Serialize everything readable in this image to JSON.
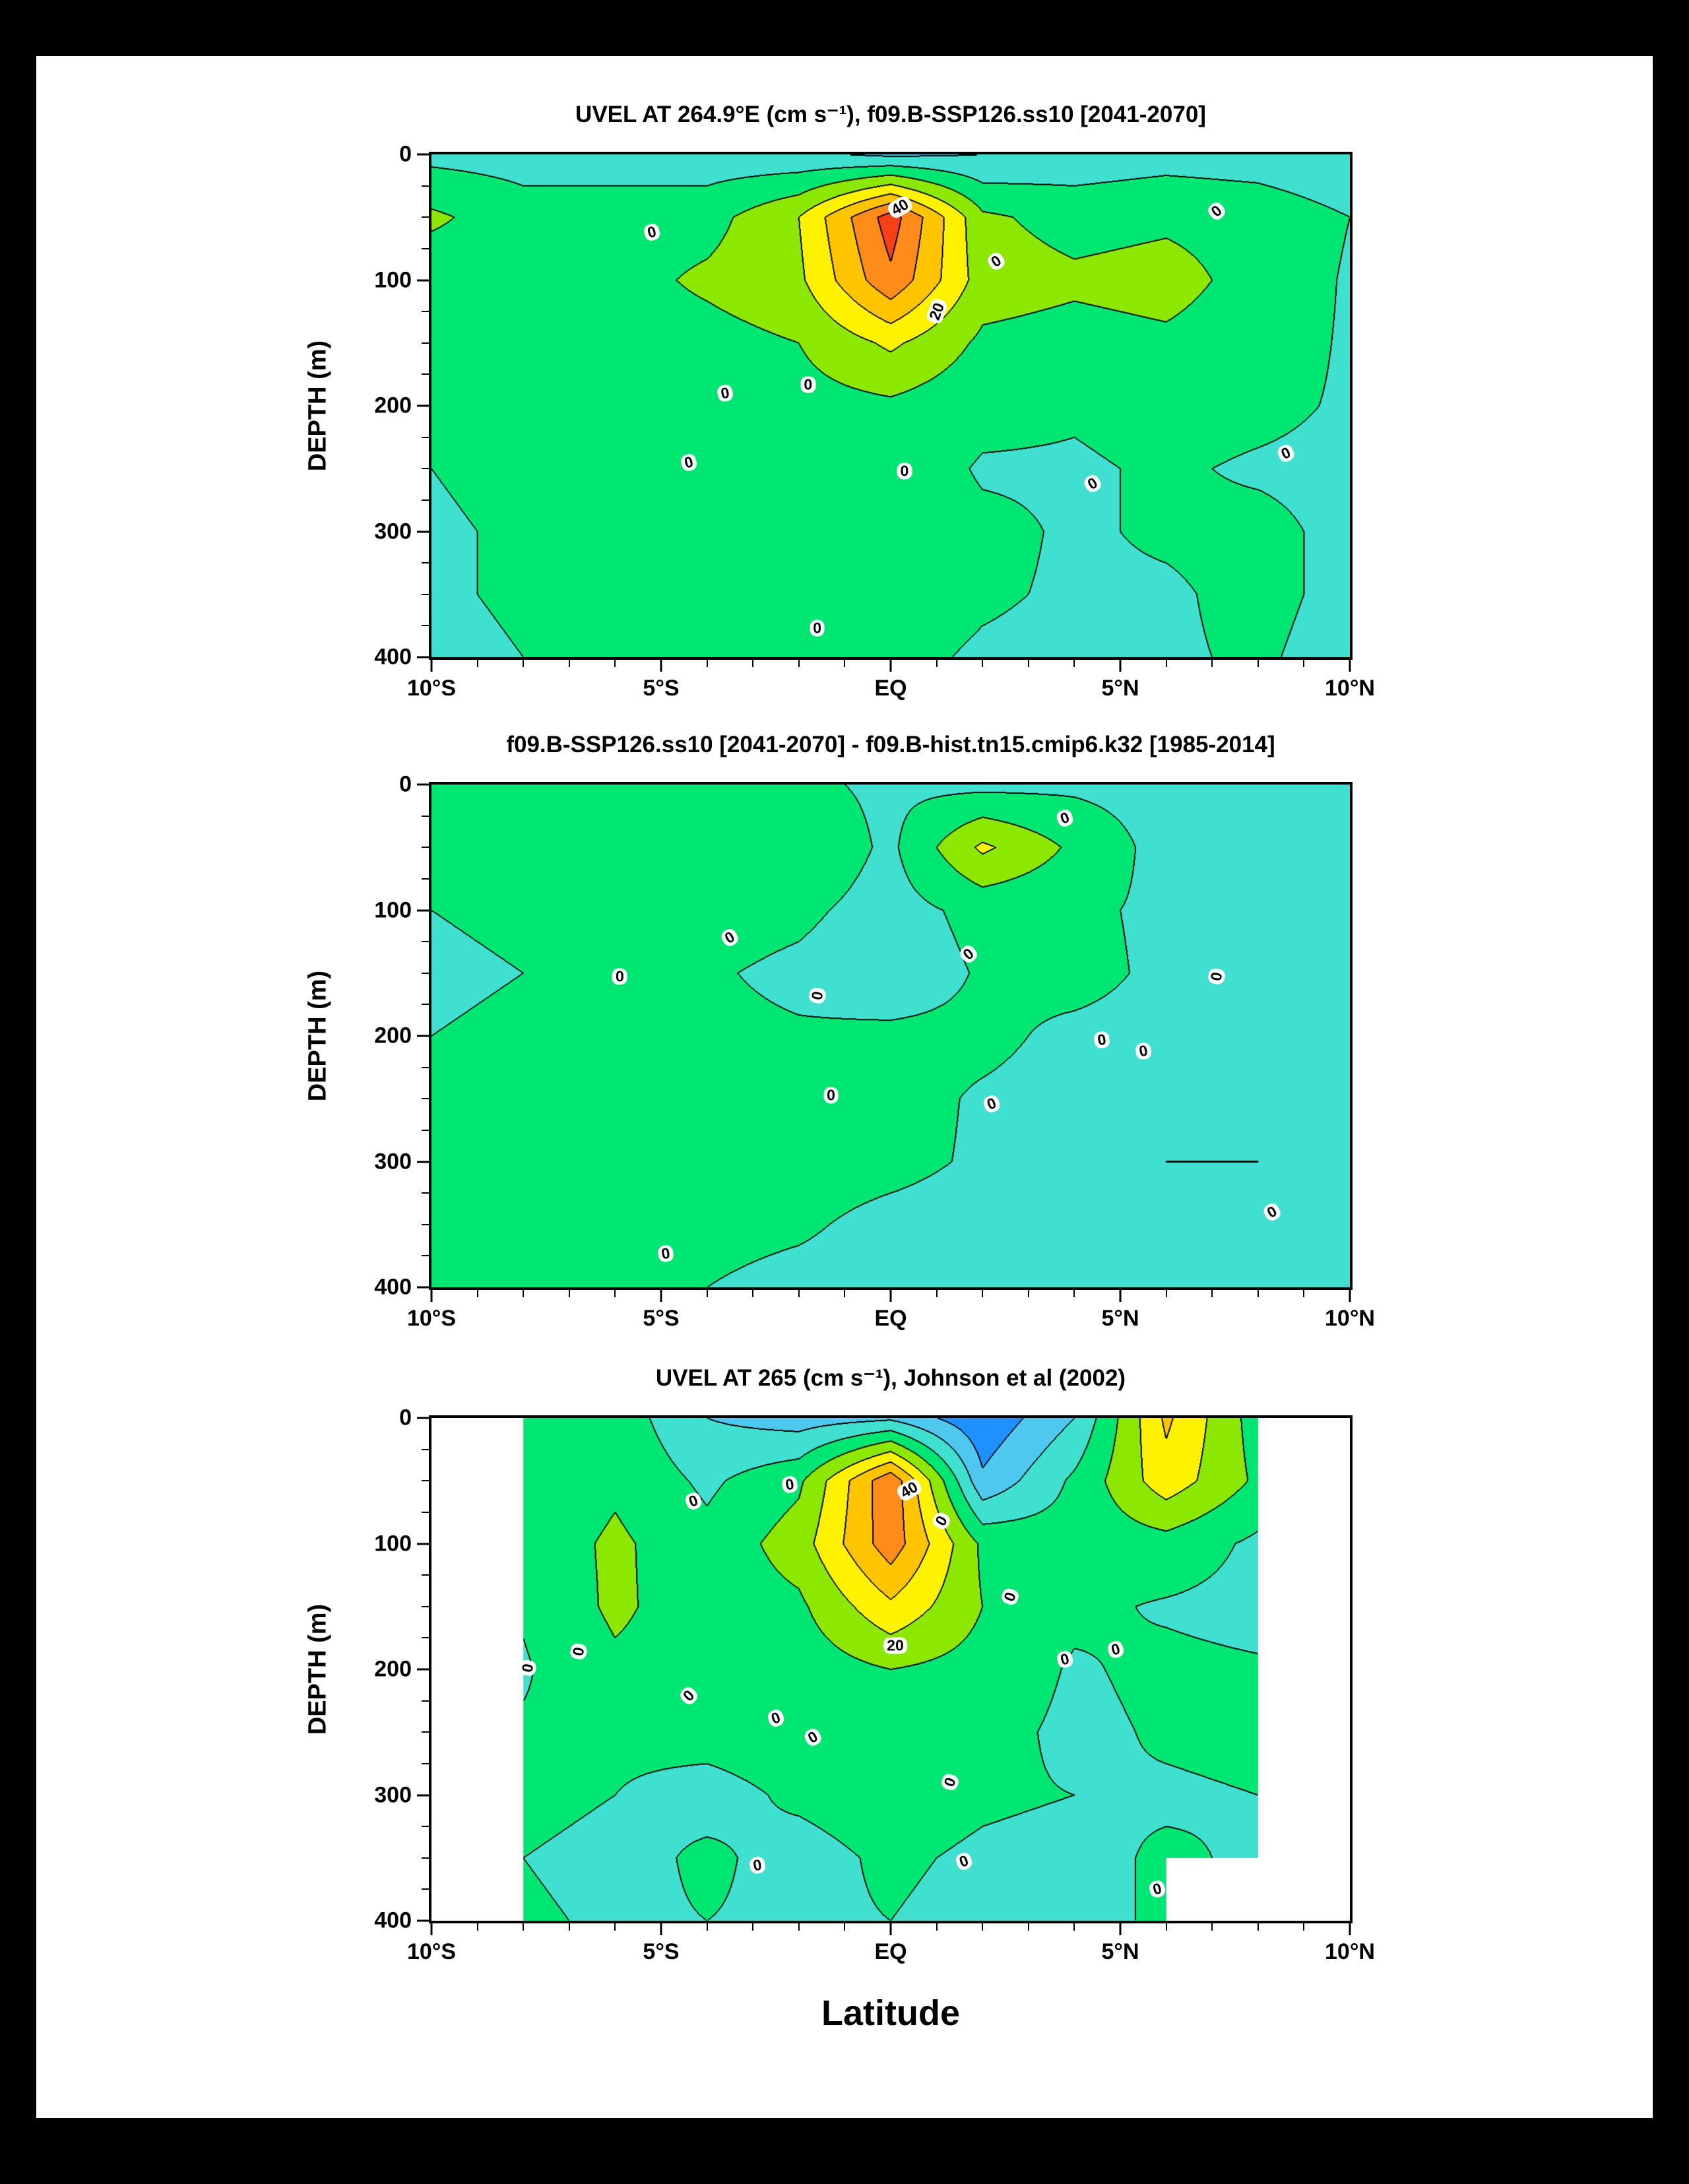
{
  "figure": {
    "background": "#000000",
    "sheet_background": "#ffffff",
    "xlabel": "Latitude"
  },
  "palette": {
    "levels": [
      -40,
      -30,
      -20,
      -10,
      0,
      10,
      20,
      30,
      40,
      50,
      60
    ],
    "colors": [
      "#0a60d8",
      "#1e90ff",
      "#4fc8f0",
      "#40e0d0",
      "#00e673",
      "#8ce800",
      "#fff200",
      "#ffc400",
      "#ff8c1a",
      "#f54018"
    ]
  },
  "axes": {
    "x": {
      "min": -10,
      "max": 10,
      "minor_step": 1,
      "major": [
        {
          "v": -10,
          "label": "10°S"
        },
        {
          "v": -5,
          "label": "5°S"
        },
        {
          "v": 0,
          "label": "EQ"
        },
        {
          "v": 5,
          "label": "5°N"
        },
        {
          "v": 10,
          "label": "10°N"
        }
      ]
    },
    "y": {
      "min": 0,
      "max": 400,
      "minor_step": 25,
      "label": "DEPTH (m)",
      "major": [
        {
          "v": 0,
          "label": "0"
        },
        {
          "v": 100,
          "label": "100"
        },
        {
          "v": 200,
          "label": "200"
        },
        {
          "v": 300,
          "label": "300"
        },
        {
          "v": 400,
          "label": "400"
        }
      ]
    }
  },
  "chart_data": [
    {
      "type": "heatmap",
      "title": "UVEL AT 264.9°E (cm s⁻¹), f09.B-SSP126.ss10 [2041-2070]",
      "ylabel": "DEPTH (m)",
      "units": "cm s⁻¹",
      "contour_interval": 10,
      "lat": [
        -10,
        -8,
        -6,
        -4,
        -2,
        0,
        2,
        4,
        6,
        8,
        10
      ],
      "depth": [
        0,
        50,
        100,
        150,
        200,
        250,
        300,
        350,
        400
      ],
      "values": [
        [
          -3,
          -4,
          -5,
          -6,
          -8,
          -12,
          -10,
          -6,
          -4,
          -5,
          -8
        ],
        [
          12,
          4,
          5,
          6,
          20,
          55,
          12,
          6,
          8,
          6,
          0
        ],
        [
          3,
          5,
          6,
          12,
          18,
          48,
          15,
          12,
          14,
          6,
          -1
        ],
        [
          2,
          4,
          5,
          6,
          10,
          22,
          8,
          6,
          8,
          4,
          -1
        ],
        [
          1,
          3,
          4,
          5,
          6,
          8,
          3,
          1,
          3,
          2,
          -1
        ],
        [
          0,
          2,
          3,
          4,
          5,
          6,
          -1,
          -1,
          1,
          -1,
          -2
        ],
        [
          -1,
          1,
          2,
          3,
          4,
          5,
          2,
          -1,
          1,
          2,
          -2
        ],
        [
          -1,
          1,
          2,
          3,
          3,
          4,
          1,
          -1,
          -1,
          2,
          -2
        ],
        [
          -2,
          0,
          1,
          2,
          3,
          2,
          -1,
          -2,
          -1,
          1,
          -3
        ]
      ],
      "contour_labels": [
        {
          "text": "0",
          "lat": -5.2,
          "depth": 62,
          "angle": -15
        },
        {
          "text": "40",
          "lat": 0.2,
          "depth": 42,
          "angle": -30
        },
        {
          "text": "20",
          "lat": 1.0,
          "depth": 125,
          "angle": -70
        },
        {
          "text": "0",
          "lat": 2.3,
          "depth": 85,
          "angle": -35
        },
        {
          "text": "0",
          "lat": 7.1,
          "depth": 45,
          "angle": -40
        },
        {
          "text": "0",
          "lat": -3.6,
          "depth": 190,
          "angle": -10
        },
        {
          "text": "0",
          "lat": -1.8,
          "depth": 183,
          "angle": 0
        },
        {
          "text": "0",
          "lat": -4.4,
          "depth": 245,
          "angle": -15
        },
        {
          "text": "0",
          "lat": 0.3,
          "depth": 252,
          "angle": 0
        },
        {
          "text": "0",
          "lat": 4.4,
          "depth": 262,
          "angle": -30
        },
        {
          "text": "0",
          "lat": 8.6,
          "depth": 238,
          "angle": -25
        },
        {
          "text": "0",
          "lat": -1.6,
          "depth": 377,
          "angle": 0
        }
      ]
    },
    {
      "type": "heatmap",
      "title": "f09.B-SSP126.ss10 [2041-2070] - f09.B-hist.tn15.cmip6.k32 [1985-2014]",
      "ylabel": "DEPTH (m)",
      "units": "cm s⁻¹",
      "contour_interval": 10,
      "lat": [
        -10,
        -8,
        -6,
        -4,
        -2,
        0,
        2,
        4,
        6,
        8,
        10
      ],
      "depth": [
        0,
        50,
        100,
        150,
        200,
        250,
        300,
        350,
        400
      ],
      "values": [
        [
          0,
          1,
          2,
          1,
          2,
          -2,
          -3,
          -2,
          -4,
          -2,
          -1
        ],
        [
          1,
          0,
          2,
          10,
          8,
          -2,
          22,
          8,
          -4,
          -6,
          -2
        ],
        [
          0,
          1,
          2,
          4,
          2,
          -4,
          3,
          2,
          -2,
          -3,
          0
        ],
        [
          -1,
          0,
          2,
          1,
          -2,
          -6,
          1,
          3,
          -2,
          -1,
          0
        ],
        [
          0,
          1,
          2,
          2,
          1,
          2,
          2,
          -2,
          -3,
          -1,
          0
        ],
        [
          0,
          1,
          3,
          3,
          4,
          3,
          -1,
          -3,
          -1,
          0,
          0
        ],
        [
          1,
          1,
          2,
          3,
          3,
          2,
          -1,
          -2,
          0,
          0,
          -1
        ],
        [
          1,
          2,
          2,
          2,
          1,
          -2,
          -3,
          -1,
          0,
          -1,
          -1
        ],
        [
          0,
          1,
          1,
          0,
          -2,
          -3,
          -2,
          -1,
          -1,
          -1,
          -1
        ]
      ],
      "contour_labels": [
        {
          "text": "0",
          "lat": 3.8,
          "depth": 27,
          "angle": -20
        },
        {
          "text": "0",
          "lat": -3.5,
          "depth": 122,
          "angle": -30
        },
        {
          "text": "0",
          "lat": 1.7,
          "depth": 135,
          "angle": -40
        },
        {
          "text": "0",
          "lat": -5.9,
          "depth": 153,
          "angle": 0
        },
        {
          "text": "0",
          "lat": -1.6,
          "depth": 168,
          "angle": -80
        },
        {
          "text": "0",
          "lat": 7.1,
          "depth": 153,
          "angle": -80
        },
        {
          "text": "0",
          "lat": 4.6,
          "depth": 203,
          "angle": -10
        },
        {
          "text": "0",
          "lat": 5.5,
          "depth": 212,
          "angle": -10
        },
        {
          "text": "0",
          "lat": -1.3,
          "depth": 247,
          "angle": 0
        },
        {
          "text": "0",
          "lat": 2.2,
          "depth": 254,
          "angle": -20
        },
        {
          "text": "0",
          "lat": 8.3,
          "depth": 340,
          "angle": -30
        },
        {
          "text": "0",
          "lat": -4.9,
          "depth": 373,
          "angle": -10
        }
      ]
    },
    {
      "type": "heatmap",
      "title": "UVEL AT 265 (cm s⁻¹), Johnson et al (2002)",
      "ylabel": "DEPTH (m)",
      "units": "cm s⁻¹",
      "contour_interval": 10,
      "lat": [
        -10,
        -8,
        -6,
        -4,
        -2,
        0,
        2,
        4,
        6,
        8,
        10
      ],
      "depth": [
        0,
        50,
        100,
        150,
        200,
        250,
        300,
        350,
        400
      ],
      "values": [
        [
          null,
          2,
          6,
          -10,
          -15,
          -12,
          -28,
          -10,
          32,
          5,
          null
        ],
        [
          null,
          0,
          8,
          -2,
          8,
          48,
          -18,
          2,
          26,
          8,
          null
        ],
        [
          null,
          3,
          12,
          3,
          15,
          46,
          8,
          4,
          6,
          -2,
          null
        ],
        [
          null,
          1,
          12,
          4,
          8,
          28,
          10,
          2,
          -1,
          -3,
          null
        ],
        [
          null,
          -1,
          8,
          5,
          4,
          10,
          6,
          -1,
          2,
          1,
          null
        ],
        [
          null,
          1,
          1,
          2,
          3,
          6,
          3,
          -2,
          1,
          2,
          null
        ],
        [
          null,
          2,
          0,
          -2,
          1,
          3,
          1,
          0,
          -1,
          0,
          null
        ],
        [
          null,
          0,
          -2,
          1,
          -2,
          1,
          -1,
          -2,
          1,
          -1,
          null
        ],
        [
          null,
          1,
          -1,
          0,
          -1,
          0,
          -2,
          0,
          0,
          null,
          null
        ]
      ],
      "contour_labels": [
        {
          "text": "0",
          "lat": -4.3,
          "depth": 66,
          "angle": -20
        },
        {
          "text": "0",
          "lat": -2.2,
          "depth": 53,
          "angle": -10
        },
        {
          "text": "40",
          "lat": 0.4,
          "depth": 57,
          "angle": -30
        },
        {
          "text": "0",
          "lat": 1.1,
          "depth": 82,
          "angle": -60
        },
        {
          "text": "20",
          "lat": 0.1,
          "depth": 181,
          "angle": 0
        },
        {
          "text": "0",
          "lat": -6.8,
          "depth": 186,
          "angle": -80
        },
        {
          "text": "0",
          "lat": -7.9,
          "depth": 199,
          "angle": -80
        },
        {
          "text": "0",
          "lat": -4.4,
          "depth": 221,
          "angle": -45
        },
        {
          "text": "0",
          "lat": -2.5,
          "depth": 239,
          "angle": -20
        },
        {
          "text": "0",
          "lat": -1.7,
          "depth": 254,
          "angle": -30
        },
        {
          "text": "0",
          "lat": 2.6,
          "depth": 142,
          "angle": -70
        },
        {
          "text": "0",
          "lat": 4.9,
          "depth": 184,
          "angle": -15
        },
        {
          "text": "0",
          "lat": 3.8,
          "depth": 192,
          "angle": -15
        },
        {
          "text": "0",
          "lat": 1.3,
          "depth": 290,
          "angle": -70
        },
        {
          "text": "0",
          "lat": -2.9,
          "depth": 356,
          "angle": -10
        },
        {
          "text": "0",
          "lat": 1.6,
          "depth": 353,
          "angle": -20
        },
        {
          "text": "0",
          "lat": 5.8,
          "depth": 375,
          "angle": -15
        }
      ]
    }
  ]
}
